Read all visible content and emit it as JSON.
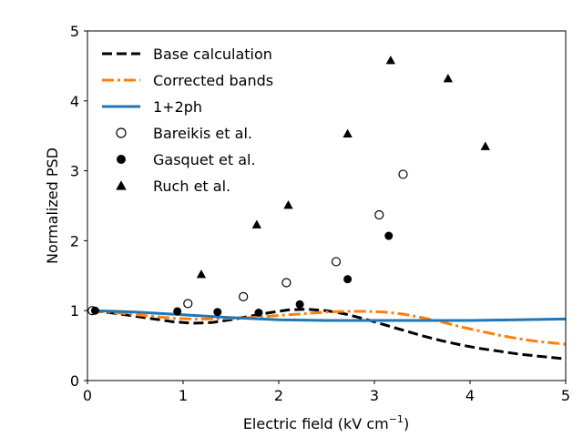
{
  "chart_data": {
    "type": "line",
    "title": "",
    "xlabel": "Electric field (kV cm",
    "xlabel_sup": "−1",
    "xlabel_close": ")",
    "ylabel": "Normalized PSD",
    "xlim": [
      0,
      5
    ],
    "ylim": [
      0,
      5
    ],
    "xticks": [
      0,
      1,
      2,
      3,
      4,
      5
    ],
    "yticks": [
      0,
      1,
      2,
      3,
      4,
      5
    ],
    "xtick_labels": [
      "0",
      "1",
      "2",
      "3",
      "4",
      "5"
    ],
    "ytick_labels": [
      "0",
      "1",
      "2",
      "3",
      "4",
      "5"
    ],
    "grid": false,
    "legend_position": "top-left",
    "series": [
      {
        "name": "Base calculation",
        "kind": "line",
        "style": "dashed",
        "color": "#000000",
        "x": [
          0.05,
          0.3,
          0.6,
          0.9,
          1.1,
          1.3,
          1.5,
          1.7,
          1.9,
          2.1,
          2.3,
          2.5,
          2.7,
          2.9,
          3.1,
          3.3,
          3.5,
          3.7,
          3.9,
          4.1,
          4.3,
          4.5,
          4.7,
          5.0
        ],
        "y": [
          1.0,
          0.96,
          0.9,
          0.84,
          0.82,
          0.83,
          0.87,
          0.92,
          0.97,
          1.01,
          1.02,
          1.0,
          0.95,
          0.88,
          0.8,
          0.72,
          0.64,
          0.57,
          0.51,
          0.46,
          0.42,
          0.38,
          0.35,
          0.31
        ]
      },
      {
        "name": "Corrected bands",
        "kind": "line",
        "style": "dashdot",
        "color": "#ff7f0e",
        "x": [
          0.05,
          0.3,
          0.6,
          0.9,
          1.1,
          1.3,
          1.5,
          1.7,
          1.9,
          2.1,
          2.3,
          2.5,
          2.7,
          2.9,
          3.1,
          3.3,
          3.5,
          3.7,
          3.9,
          4.1,
          4.3,
          4.5,
          4.7,
          5.0
        ],
        "y": [
          1.0,
          0.97,
          0.93,
          0.89,
          0.88,
          0.88,
          0.89,
          0.9,
          0.92,
          0.94,
          0.96,
          0.98,
          0.99,
          0.99,
          0.98,
          0.95,
          0.9,
          0.84,
          0.77,
          0.71,
          0.65,
          0.6,
          0.56,
          0.52
        ]
      },
      {
        "name": "1+2ph",
        "kind": "line",
        "style": "solid",
        "color": "#1f77b4",
        "x": [
          0.05,
          0.5,
          1.0,
          1.5,
          2.0,
          2.5,
          3.0,
          3.5,
          4.0,
          4.5,
          5.0
        ],
        "y": [
          1.0,
          0.98,
          0.94,
          0.9,
          0.87,
          0.86,
          0.86,
          0.86,
          0.86,
          0.87,
          0.88
        ]
      },
      {
        "name": "Bareikis et al.",
        "kind": "scatter",
        "marker": "open-circle",
        "color": "#000000",
        "x": [
          0.05,
          1.05,
          1.63,
          2.08,
          2.6,
          3.05,
          3.3
        ],
        "y": [
          1.0,
          1.1,
          1.2,
          1.4,
          1.7,
          2.37,
          2.95
        ]
      },
      {
        "name": "Gasquet et al.",
        "kind": "scatter",
        "marker": "filled-circle",
        "color": "#000000",
        "x": [
          0.08,
          0.94,
          1.36,
          1.79,
          2.22,
          2.72,
          3.15
        ],
        "y": [
          1.0,
          0.99,
          0.98,
          0.97,
          1.09,
          1.45,
          2.07
        ]
      },
      {
        "name": "Ruch et al.",
        "kind": "scatter",
        "marker": "filled-triangle",
        "color": "#000000",
        "x": [
          1.19,
          1.77,
          2.1,
          2.72,
          3.17,
          3.77,
          4.16
        ],
        "y": [
          1.52,
          2.23,
          2.51,
          3.53,
          4.58,
          4.32,
          3.35
        ]
      }
    ]
  }
}
